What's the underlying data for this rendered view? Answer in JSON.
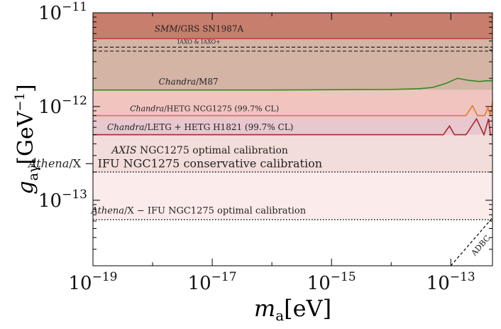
{
  "chart_data": {
    "type": "area",
    "title": "",
    "x_scale": "log",
    "y_scale": "log",
    "xlim": [
      1e-19,
      5e-13
    ],
    "ylim": [
      2e-14,
      1e-11
    ],
    "xlabel": {
      "main": "m",
      "sub": "a",
      "unit": "[eV]"
    },
    "ylabel": {
      "main": "g",
      "sub": "aγ",
      "unit": "[GeV",
      "unit_sup": "−1",
      "unit_end": "]"
    },
    "x_ticks": [
      {
        "base": "10",
        "exp": "−19",
        "value": 1e-19
      },
      {
        "base": "10",
        "exp": "−17",
        "value": 1e-17
      },
      {
        "base": "10",
        "exp": "−15",
        "value": 1e-15
      },
      {
        "base": "10",
        "exp": "−13",
        "value": 1e-13
      }
    ],
    "y_ticks": [
      {
        "base": "10",
        "exp": "−11",
        "value": 1e-11
      },
      {
        "base": "10",
        "exp": "−12",
        "value": 1e-12
      },
      {
        "base": "10",
        "exp": "−13",
        "value": 1e-13
      }
    ],
    "bands": [
      {
        "name": "SMM/GRS SN1987A",
        "lower": 5.3e-12,
        "upper": 1e-11,
        "color": "#c77e6c",
        "line_color": "#b8433a"
      },
      {
        "name": "Chandra/M87",
        "lower": 1.5e-12,
        "upper": 5.3e-12,
        "color": "#d4b4a4",
        "line_color": "#2e8b22"
      },
      {
        "name": "Chandra/HETG NCG1275",
        "lower": 8e-13,
        "upper": 1.5e-12,
        "color": "#f0c5c0",
        "line_color": "#e07a30"
      },
      {
        "name": "Chandra/LETG+HETG H1821",
        "lower": 5e-13,
        "upper": 8e-13,
        "color": "#e8c7cf",
        "line_color": "#a32a2a"
      },
      {
        "name": "AXIS NGC1275 optimal calibration",
        "lower": 2e-13,
        "upper": 5e-13,
        "color": "#f3ddda"
      },
      {
        "name": "Athena/X-IFU NGC1275 conservative",
        "lower": 6.2e-14,
        "upper": 2e-13,
        "color": "#fcebeb"
      }
    ],
    "series": [
      {
        "name": "Chandra/M87",
        "color": "#2e8b22",
        "points": [
          [
            1e-19,
            1.5e-12
          ],
          [
            1e-16,
            1.5e-12
          ],
          [
            1e-14,
            1.52e-12
          ],
          [
            3e-14,
            1.55e-12
          ],
          [
            5e-14,
            1.6e-12
          ],
          [
            8e-14,
            1.75e-12
          ],
          [
            1.3e-13,
            2e-12
          ],
          [
            2e-13,
            1.9e-12
          ],
          [
            3e-13,
            1.85e-12
          ],
          [
            4e-13,
            1.88e-12
          ],
          [
            5e-13,
            1.88e-12
          ]
        ]
      },
      {
        "name": "Chandra/HETG NCG1275",
        "color": "#e07a30",
        "points": [
          [
            1e-19,
            8e-13
          ],
          [
            1.8e-13,
            8e-13
          ],
          [
            2.3e-13,
            1.02e-12
          ],
          [
            2.8e-13,
            8e-13
          ],
          [
            3.7e-13,
            8e-13
          ],
          [
            4.2e-13,
            9.7e-13
          ],
          [
            4.6e-13,
            8e-13
          ],
          [
            5e-13,
            1.12e-12
          ]
        ]
      },
      {
        "name": "Chandra/LETG+HETG H1821",
        "color": "#a32a2a",
        "points": [
          [
            1e-19,
            5e-13
          ],
          [
            7.5e-14,
            5e-13
          ],
          [
            9.5e-14,
            6.2e-13
          ],
          [
            1.15e-13,
            5e-13
          ],
          [
            1.8e-13,
            5e-13
          ],
          [
            2.7e-13,
            7.4e-13
          ],
          [
            3.6e-13,
            5e-13
          ],
          [
            4.3e-13,
            7.4e-13
          ],
          [
            4.6e-13,
            5e-13
          ],
          [
            5e-13,
            5e-13
          ]
        ]
      }
    ],
    "dashed_lines": [
      {
        "name": "IAXO & IAXO+",
        "values": [
          4.3e-12,
          3.9e-12
        ],
        "color": "#222222"
      }
    ],
    "dotted_lines": [
      {
        "name": "Athena/X-IFU NGC1275 conservative calibration",
        "value": 2e-13
      },
      {
        "name": "Athena/X-IFU NGC1275 optimal calibration",
        "value": 6.2e-14
      }
    ],
    "adbc": {
      "label": "ADBC",
      "points": [
        [
          1e-13,
          2e-14
        ],
        [
          5e-13,
          6.5e-14
        ]
      ]
    },
    "annotations": [
      {
        "key": "smm",
        "italic": "SMM",
        "rest": "/GRS SN1987A",
        "x": 6e-18,
        "y": 6.3e-12,
        "size": 12
      },
      {
        "key": "iaxo",
        "italic": "",
        "rest": "IAXO & IAXO+",
        "x": 6e-18,
        "y": 4.7e-12,
        "size": 8
      },
      {
        "key": "m87",
        "italic": "Chandra",
        "rest": "/M87",
        "x": 4e-18,
        "y": 1.72e-12,
        "size": 12
      },
      {
        "key": "hetg",
        "italic": "Chandra",
        "rest": "/HETG NCG1275 (99.7% CL)",
        "x": 7.4e-18,
        "y": 8.9e-13,
        "size": 11
      },
      {
        "key": "letg",
        "italic": "Chandra",
        "rest": "/LETG + HETG H1821 (99.7% CL)",
        "x": 6.3e-18,
        "y": 5.6e-13,
        "size": 12
      },
      {
        "key": "axis",
        "italic": "AXIS",
        "rest": " NGC1275 optimal calibration",
        "x": 6.2e-18,
        "y": 3.15e-13,
        "size": 14
      },
      {
        "key": "athena-cons",
        "italic": "Athena",
        "rest": "/X − IFU NGC1275 conservative calibration",
        "x": 2.4e-18,
        "y": 2.25e-13,
        "size": 16
      },
      {
        "key": "athena-opt",
        "italic": "Athena",
        "rest": "/X − IFU NGC1275 optimal calibration",
        "x": 5.9e-18,
        "y": 7.2e-14,
        "size": 13
      }
    ]
  }
}
